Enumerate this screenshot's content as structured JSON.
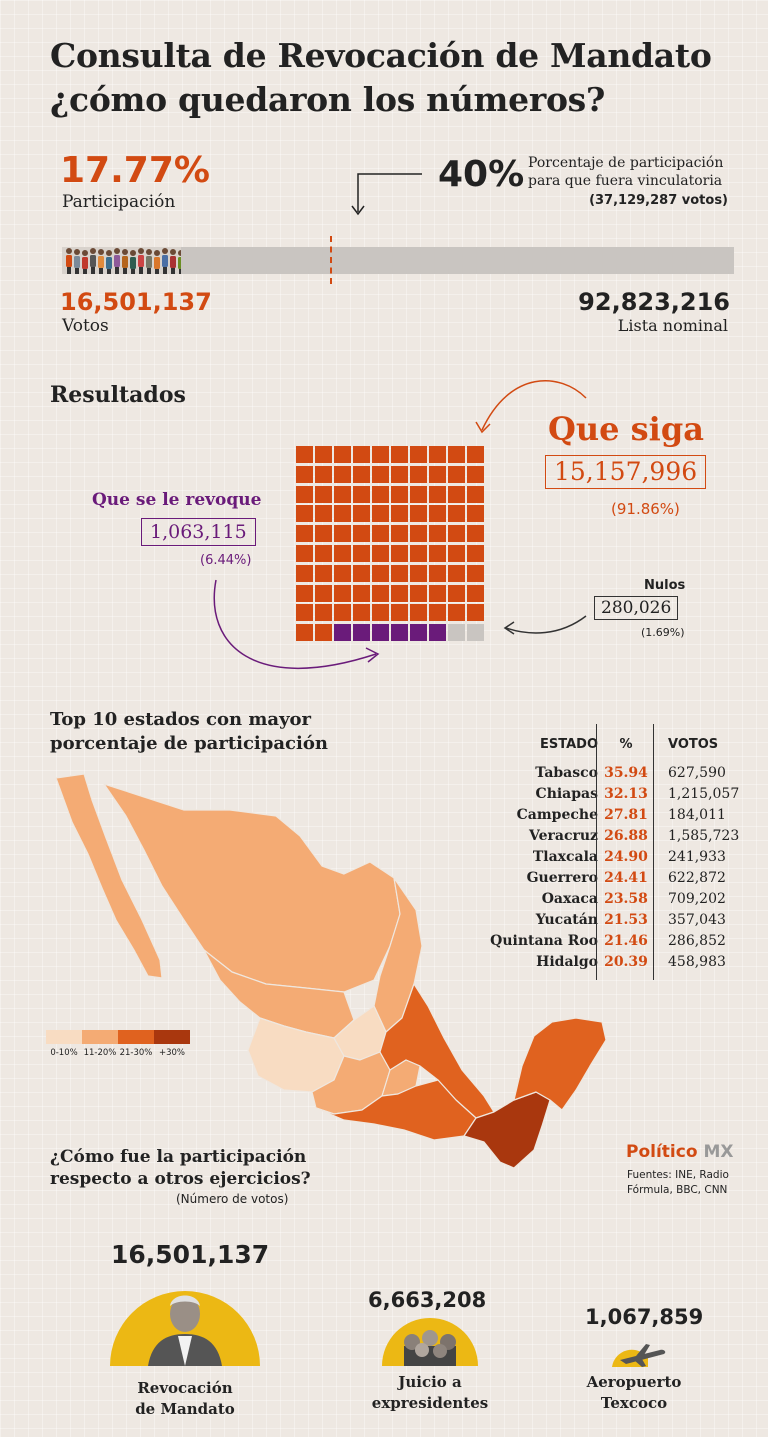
{
  "title": {
    "line1": "Consulta de Revocación de Mandato",
    "line2": "¿cómo quedaron los números?"
  },
  "participation": {
    "pct": "17.77%",
    "pct_label": "Participación",
    "pct_value": 17.77,
    "votes": "16,501,137",
    "votes_label": "Votos",
    "threshold_pct": "40%",
    "threshold_value": 40,
    "threshold_line1": "Porcentaje de participación",
    "threshold_line2": "para que fuera vinculatoria",
    "threshold_votes": "(37,129,287 votos)",
    "nominal": "92,823,216",
    "nominal_label": "Lista nominal"
  },
  "results": {
    "heading": "Resultados",
    "que_siga": {
      "label": "Que siga",
      "votes": "15,157,996",
      "pct": "(91.86%)",
      "value": 91.86
    },
    "revoque": {
      "label": "Que se le revoque",
      "votes": "1,063,115",
      "pct": "(6.44%)",
      "value": 6.44
    },
    "nulos": {
      "label": "Nulos",
      "votes": "280,026",
      "pct": "(1.69%)",
      "value": 1.69
    }
  },
  "states": {
    "heading_line1": "Top 10 estados con mayor",
    "heading_line2": "porcentaje de participación",
    "col_state": "ESTADO",
    "col_pct": "%",
    "col_votes": "VOTOS",
    "rows": [
      {
        "state": "Tabasco",
        "pct": "35.94",
        "votes": "627,590"
      },
      {
        "state": "Chiapas",
        "pct": "32.13",
        "votes": "1,215,057"
      },
      {
        "state": "Campeche",
        "pct": "27.81",
        "votes": "184,011"
      },
      {
        "state": "Veracruz",
        "pct": "26.88",
        "votes": "1,585,723"
      },
      {
        "state": "Tlaxcala",
        "pct": "24.90",
        "votes": "241,933"
      },
      {
        "state": "Guerrero",
        "pct": "24.41",
        "votes": "622,872"
      },
      {
        "state": "Oaxaca",
        "pct": "23.58",
        "votes": "709,202"
      },
      {
        "state": "Yucatán",
        "pct": "21.53",
        "votes": "357,043"
      },
      {
        "state": "Quintana Roo",
        "pct": "21.46",
        "votes": "286,852"
      },
      {
        "state": "Hidalgo",
        "pct": "20.39",
        "votes": "458,983"
      }
    ]
  },
  "legend": [
    {
      "label": "0-10%",
      "color": "#f8dcc2"
    },
    {
      "label": "11-20%",
      "color": "#f4ab74"
    },
    {
      "label": "21-30%",
      "color": "#e0621f"
    },
    {
      "label": "+30%",
      "color": "#a9370e"
    }
  ],
  "colors": {
    "orange": "#d24a12",
    "purple": "#6a1b7a",
    "gray": "#c9c5c1",
    "yellow": "#ecb814"
  },
  "brand": {
    "name_part1": "Político",
    "name_part2": "MX",
    "sources_line1": "Fuentes: INE, Radio",
    "sources_line2": "Fórmula, BBC, CNN"
  },
  "comparison": {
    "heading_line1": "¿Cómo fue la participación",
    "heading_line2": "respecto a otros ejercicios?",
    "subheading": "(Número de votos)",
    "items": [
      {
        "votes": "16,501,137",
        "value": 16501137,
        "line1": "Revocación",
        "line2": "de Mandato"
      },
      {
        "votes": "6,663,208",
        "value": 6663208,
        "line1": "Juicio a",
        "line2": "expresidentes"
      },
      {
        "votes": "1,067,859",
        "value": 1067859,
        "line1": "Aeropuerto",
        "line2": "Texcoco"
      }
    ]
  }
}
